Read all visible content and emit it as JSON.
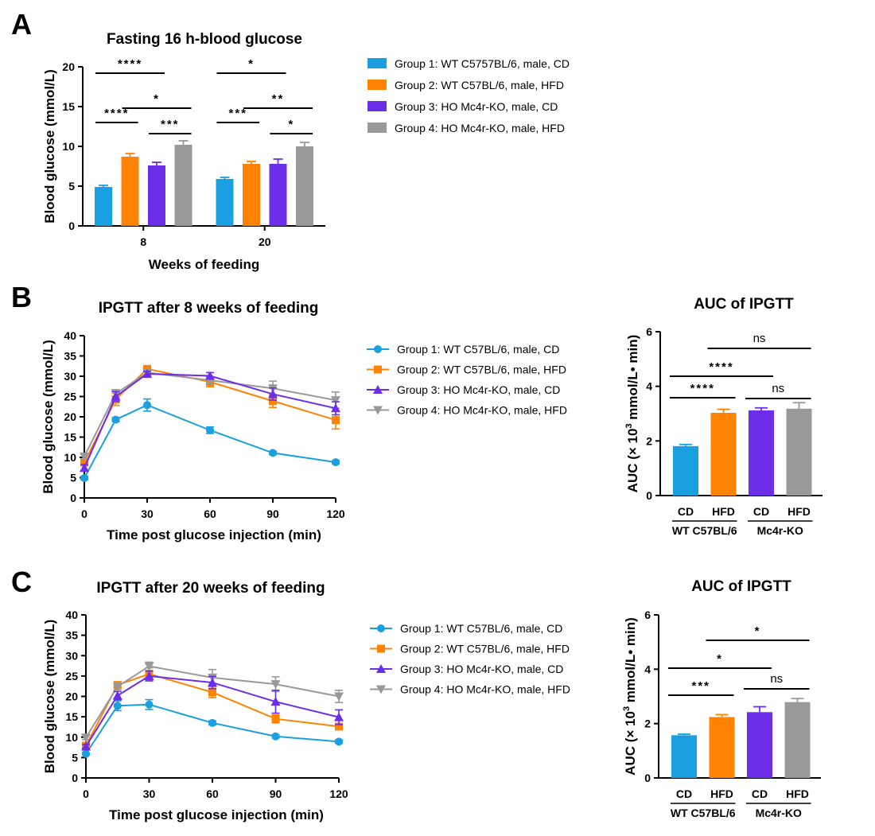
{
  "panels": {
    "A": {
      "letter": "A"
    },
    "B": {
      "letter": "B"
    },
    "C": {
      "letter": "C"
    }
  },
  "chart_data": [
    {
      "id": "A",
      "type": "bar",
      "title": "Fasting 16 h-blood glucose",
      "xlabel": "Weeks of feeding",
      "ylabel": "Blood glucose (mmol/L)",
      "ylim": [
        0,
        20
      ],
      "yticks": [
        0,
        5,
        10,
        15,
        20
      ],
      "categories": [
        "8",
        "20"
      ],
      "series": [
        {
          "name": "Group 1: WT C5757BL/6, male, CD",
          "color": "#1aa0e0",
          "values": [
            4.9,
            5.9
          ],
          "errors": [
            0.2,
            0.2
          ]
        },
        {
          "name": "Group 2: WT C57BL/6, male, HFD",
          "color": "#ff8200",
          "values": [
            8.7,
            7.8
          ],
          "errors": [
            0.4,
            0.3
          ]
        },
        {
          "name": "Group 3: HO Mc4r-KO, male, CD",
          "color": "#6c2ee8",
          "values": [
            7.6,
            7.8
          ],
          "errors": [
            0.4,
            0.6
          ]
        },
        {
          "name": "Group 4: HO Mc4r-KO, male, HFD",
          "color": "#999999",
          "values": [
            10.2,
            10.0
          ],
          "errors": [
            0.5,
            0.5
          ]
        }
      ],
      "significance": [
        {
          "category": "8",
          "from": 0,
          "to": 2,
          "label": "****"
        },
        {
          "category": "8",
          "from": 1,
          "to": 3,
          "label": "*"
        },
        {
          "category": "8",
          "from": 0,
          "to": 1,
          "label": "****"
        },
        {
          "category": "8",
          "from": 2,
          "to": 3,
          "label": "***"
        },
        {
          "category": "20",
          "from": 0,
          "to": 2,
          "label": "*"
        },
        {
          "category": "20",
          "from": 1,
          "to": 3,
          "label": "**"
        },
        {
          "category": "20",
          "from": 0,
          "to": 1,
          "label": "***"
        },
        {
          "category": "20",
          "from": 2,
          "to": 3,
          "label": "*"
        }
      ],
      "legend": "right"
    },
    {
      "id": "B",
      "type": "line",
      "title": "IPGTT after 8 weeks of feeding",
      "xlabel": "Time post glucose injection (min)",
      "ylabel": "Blood glucose (mmol/L)",
      "xlim": [
        0,
        120
      ],
      "ylim": [
        0,
        40
      ],
      "xticks": [
        0,
        30,
        60,
        90,
        120
      ],
      "yticks": [
        0,
        5,
        10,
        15,
        20,
        25,
        30,
        35,
        40
      ],
      "x": [
        0,
        15,
        30,
        60,
        90,
        120
      ],
      "series": [
        {
          "name": "Group 1: WT C57BL/6, male, CD",
          "color": "#1aa0e0",
          "marker": "circle",
          "values": [
            4.9,
            19.3,
            22.9,
            16.7,
            11.1,
            8.8
          ],
          "errors": [
            0.4,
            0.5,
            1.5,
            0.8,
            0.4,
            0.4
          ]
        },
        {
          "name": "Group 2: WT C57BL/6, male, HFD",
          "color": "#ff8200",
          "marker": "square",
          "values": [
            8.7,
            24.3,
            31.8,
            28.6,
            23.9,
            19.2
          ],
          "errors": [
            0.8,
            1.5,
            0.6,
            1.2,
            1.6,
            2.2
          ]
        },
        {
          "name": "Group 3: HO Mc4r-KO, male, CD",
          "color": "#6c2ee8",
          "marker": "triangle-up",
          "values": [
            7.4,
            25.0,
            30.6,
            30.1,
            25.6,
            22.1
          ],
          "errors": [
            0.8,
            1.2,
            0.6,
            0.8,
            1.5,
            1.6
          ]
        },
        {
          "name": "Group 4: HO Mc4r-KO, male, HFD",
          "color": "#999999",
          "marker": "triangle-down",
          "values": [
            10.2,
            25.7,
            30.9,
            29.0,
            27.0,
            24.1
          ],
          "errors": [
            0.6,
            1.0,
            0.6,
            0.8,
            1.8,
            2.0
          ]
        }
      ],
      "legend": "right"
    },
    {
      "id": "B-AUC",
      "type": "bar",
      "title": "AUC of IPGTT",
      "ylabel": "AUC (× 10³ mmol/L• min)",
      "ylabel_parts": [
        "AUC (× 10",
        "3",
        " mmol/L• min)"
      ],
      "ylim": [
        0,
        6
      ],
      "yticks": [
        0,
        2,
        4,
        6
      ],
      "categories": [
        "CD",
        "HFD",
        "CD",
        "HFD"
      ],
      "groups": [
        {
          "label": "WT C57BL/6",
          "from": 0,
          "to": 1
        },
        {
          "label": "Mc4r-KO",
          "from": 2,
          "to": 3
        }
      ],
      "colors": [
        "#1aa0e0",
        "#ff8200",
        "#6c2ee8",
        "#999999"
      ],
      "values": [
        1.81,
        3.03,
        3.12,
        3.18
      ],
      "errors": [
        0.06,
        0.13,
        0.09,
        0.22
      ],
      "significance": [
        {
          "from": 1,
          "to": 3,
          "label": "ns"
        },
        {
          "from": 0,
          "to": 2,
          "label": "****"
        },
        {
          "from": 2,
          "to": 3,
          "label": "ns"
        },
        {
          "from": 0,
          "to": 1,
          "label": "****"
        }
      ]
    },
    {
      "id": "C",
      "type": "line",
      "title": "IPGTT after 20 weeks of feeding",
      "xlabel": "Time post glucose injection (min)",
      "ylabel": "Blood glucose (mmol/L)",
      "xlim": [
        0,
        120
      ],
      "ylim": [
        0,
        40
      ],
      "xticks": [
        0,
        30,
        60,
        90,
        120
      ],
      "yticks": [
        0,
        5,
        10,
        15,
        20,
        25,
        30,
        35,
        40
      ],
      "x": [
        0,
        15,
        30,
        60,
        90,
        120
      ],
      "series": [
        {
          "name": "Group 1: WT C57BL/6, male, CD",
          "color": "#1aa0e0",
          "marker": "circle",
          "values": [
            5.9,
            17.7,
            18.0,
            13.5,
            10.2,
            8.9
          ],
          "errors": [
            0.3,
            1.2,
            1.2,
            0.5,
            0.4,
            0.4
          ]
        },
        {
          "name": "Group 2: WT C57BL/6, male, HFD",
          "color": "#ff8200",
          "marker": "square",
          "values": [
            7.9,
            22.8,
            25.5,
            21.0,
            14.5,
            12.6
          ],
          "errors": [
            0.5,
            0.6,
            1.5,
            1.3,
            1.0,
            0.7
          ]
        },
        {
          "name": "Group 3: HO Mc4r-KO, male, CD",
          "color": "#6c2ee8",
          "marker": "triangle-up",
          "values": [
            7.7,
            20.2,
            25.0,
            23.4,
            18.7,
            14.9
          ],
          "errors": [
            0.5,
            1.0,
            1.2,
            1.5,
            2.8,
            1.8
          ]
        },
        {
          "name": "Group 4: HO Mc4r-KO, male, HFD",
          "color": "#999999",
          "marker": "triangle-down",
          "values": [
            9.9,
            22.4,
            27.4,
            24.6,
            23.0,
            20.0
          ],
          "errors": [
            0.5,
            0.8,
            1.0,
            2.0,
            1.8,
            1.5
          ]
        }
      ],
      "legend": "right"
    },
    {
      "id": "C-AUC",
      "type": "bar",
      "title": "AUC of IPGTT",
      "ylabel": "AUC (× 10³ mmol/L• min)",
      "ylabel_parts": [
        "AUC (× 10",
        "3",
        " mmol/L• min)"
      ],
      "ylim": [
        0,
        6
      ],
      "yticks": [
        0,
        2,
        4,
        6
      ],
      "categories": [
        "CD",
        "HFD",
        "CD",
        "HFD"
      ],
      "groups": [
        {
          "label": "WT C57BL/6",
          "from": 0,
          "to": 1
        },
        {
          "label": "Mc4r-KO",
          "from": 2,
          "to": 3
        }
      ],
      "colors": [
        "#1aa0e0",
        "#ff8200",
        "#6c2ee8",
        "#999999"
      ],
      "values": [
        1.57,
        2.24,
        2.42,
        2.79
      ],
      "errors": [
        0.04,
        0.09,
        0.2,
        0.13
      ],
      "significance": [
        {
          "from": 1,
          "to": 3,
          "label": "*"
        },
        {
          "from": 0,
          "to": 2,
          "label": "*"
        },
        {
          "from": 2,
          "to": 3,
          "label": "ns"
        },
        {
          "from": 0,
          "to": 1,
          "label": "***"
        }
      ]
    }
  ]
}
